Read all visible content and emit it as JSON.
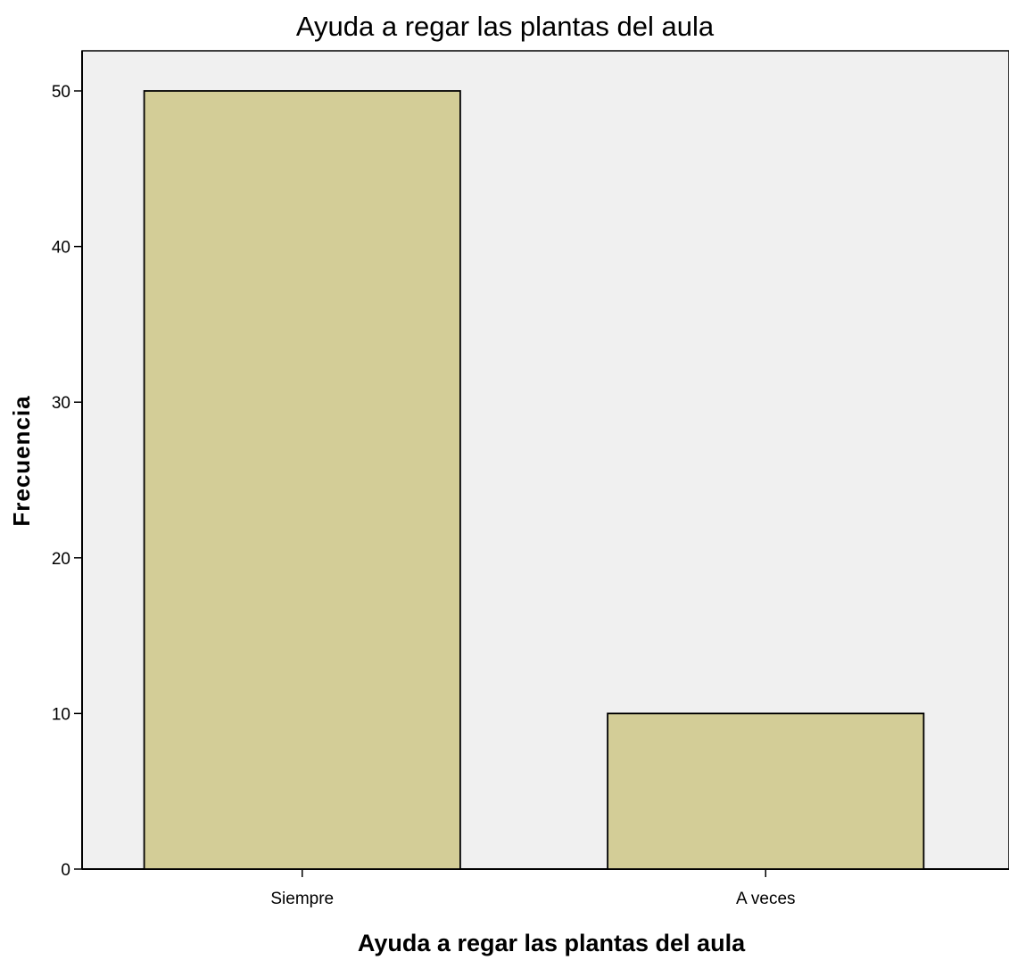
{
  "chart_data": {
    "type": "bar",
    "title": "Ayuda a regar las plantas del aula",
    "xlabel": "Ayuda a regar las plantas del aula",
    "ylabel": "Frecuencia",
    "categories": [
      "Siempre",
      "A veces"
    ],
    "values": [
      50,
      10
    ],
    "ylim": [
      0,
      50
    ],
    "yticks": [
      0,
      10,
      20,
      30,
      40,
      50
    ],
    "grid": false,
    "legend": "none",
    "colors": {
      "bar_fill": "#d3cd97",
      "bar_stroke": "#000000",
      "plot_background": "#f0f0f0",
      "page_background": "#ffffff"
    }
  }
}
